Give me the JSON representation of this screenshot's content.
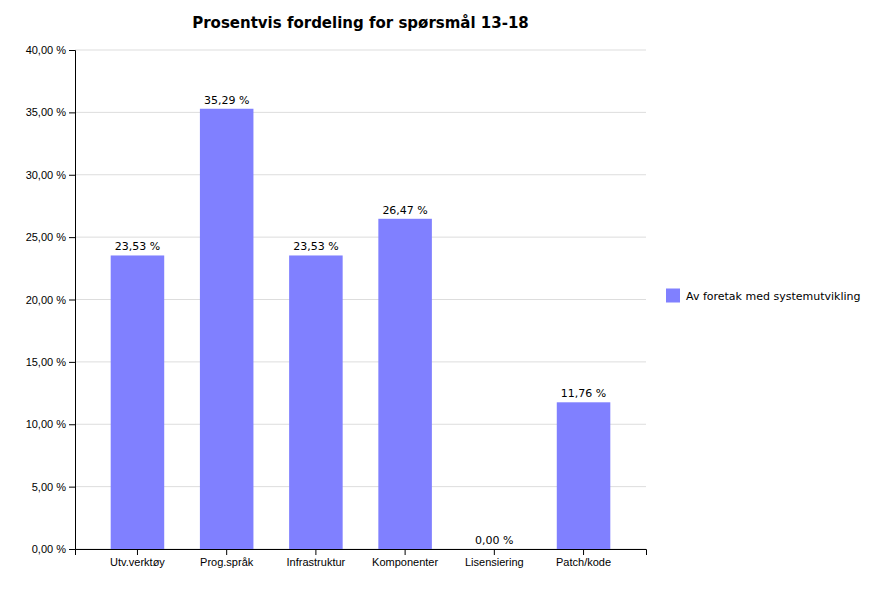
{
  "chart_data": {
    "type": "bar",
    "title": "Prosentvis fordeling for spørsmål 13-18",
    "categories": [
      "Utv.verktøy",
      "Prog.språk",
      "Infrastruktur",
      "Komponenter",
      "Lisensiering",
      "Patch/kode"
    ],
    "series": [
      {
        "name": "Av foretak med systemutvikling",
        "color": "#8080FF",
        "values": [
          23.53,
          35.29,
          23.53,
          26.47,
          0.0,
          11.76
        ],
        "value_labels": [
          "23,53 %",
          "35,29 %",
          "23,53 %",
          "26,47 %",
          "0,00 %",
          "11,76 %"
        ]
      }
    ],
    "ylim": [
      0,
      40
    ],
    "yticks": [
      {
        "value": 0,
        "label": "0,00 %"
      },
      {
        "value": 5,
        "label": "5,00 %"
      },
      {
        "value": 10,
        "label": "10,00 %"
      },
      {
        "value": 15,
        "label": "15,00 %"
      },
      {
        "value": 20,
        "label": "20,00 %"
      },
      {
        "value": 25,
        "label": "25,00 %"
      },
      {
        "value": 30,
        "label": "30,00 %"
      },
      {
        "value": 35,
        "label": "35,00 %"
      },
      {
        "value": 40,
        "label": "40,00 %"
      }
    ],
    "grid": true,
    "legend": "right",
    "data_labels": true
  }
}
